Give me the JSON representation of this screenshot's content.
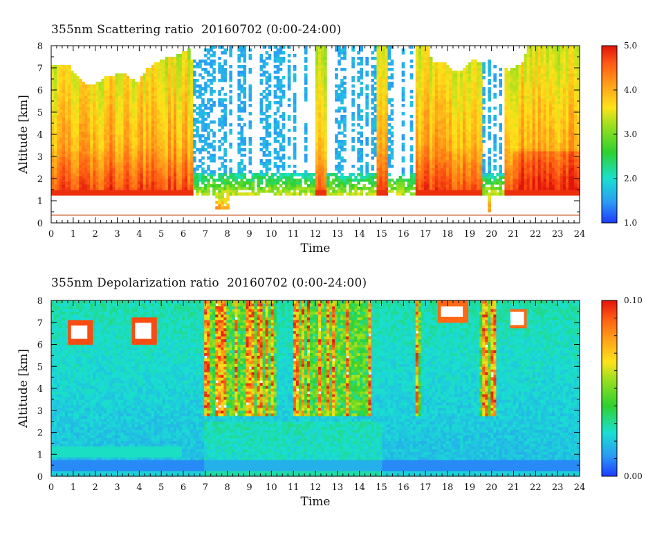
{
  "chart_data": [
    {
      "type": "heatmap",
      "title": "355nm Scattering ratio  20160702 (0:00-24:00)",
      "xlabel": "Time",
      "ylabel": "Altitude [km]",
      "xlim": [
        0,
        24
      ],
      "ylim": [
        0,
        8
      ],
      "x_ticks": [
        "0",
        "1",
        "2",
        "3",
        "4",
        "5",
        "6",
        "7",
        "8",
        "9",
        "10",
        "11",
        "12",
        "13",
        "14",
        "15",
        "16",
        "17",
        "18",
        "19",
        "20",
        "21",
        "22",
        "23",
        "24"
      ],
      "y_ticks": [
        "0",
        "1",
        "2",
        "3",
        "4",
        "5",
        "6",
        "7",
        "8"
      ],
      "colorbar": {
        "min": 1.0,
        "max": 5.0,
        "labels": [
          "1.0",
          "2.0",
          "3.0",
          "4.0",
          "5.0"
        ]
      },
      "colormap": [
        "#1e3cff",
        "#2a9df4",
        "#19e0d0",
        "#2ed12e",
        "#9be01f",
        "#ffe21a",
        "#ffa01a",
        "#ff5a14",
        "#e0140a"
      ],
      "features": {
        "cloud_base_km": 1.4,
        "reference_line_km": 0.35,
        "reference_line_color": "#c85a2a",
        "upper_cloud_periods_h": [
          [
            0,
            6.2
          ],
          [
            17.2,
            20.2
          ]
        ],
        "low_signal_periods_h": [
          [
            6.5,
            12.0
          ],
          [
            12.5,
            14.8
          ],
          [
            15.3,
            16.6
          ],
          [
            19.6,
            20.6
          ]
        ]
      }
    },
    {
      "type": "heatmap",
      "title": "355nm Depolarization ratio  20160702 (0:00-24:00)",
      "xlabel": "Time",
      "ylabel": "Altitude [km]",
      "xlim": [
        0,
        24
      ],
      "ylim": [
        0,
        8
      ],
      "x_ticks": [
        "0",
        "1",
        "2",
        "3",
        "4",
        "5",
        "6",
        "7",
        "8",
        "9",
        "10",
        "11",
        "12",
        "13",
        "14",
        "15",
        "16",
        "17",
        "18",
        "19",
        "20",
        "21",
        "22",
        "23",
        "24"
      ],
      "y_ticks": [
        "0",
        "1",
        "2",
        "3",
        "4",
        "5",
        "6",
        "7",
        "8"
      ],
      "colorbar": {
        "min": 0.0,
        "max": 0.1,
        "labels": [
          "0.00",
          "0.10"
        ]
      },
      "colormap": [
        "#1e3cff",
        "#2a9df4",
        "#19e0d0",
        "#2ed12e",
        "#9be01f",
        "#ffe21a",
        "#ffa01a",
        "#ff5a14",
        "#e0140a"
      ],
      "features": {
        "upper_cloud_periods_h": [
          [
            0,
            5.0
          ],
          [
            17.2,
            22.0
          ]
        ],
        "high_depol_periods_h": [
          [
            7.0,
            10.2
          ],
          [
            11.0,
            14.5
          ],
          [
            16.6,
            16.8
          ],
          [
            19.5,
            20.2
          ]
        ]
      }
    }
  ]
}
